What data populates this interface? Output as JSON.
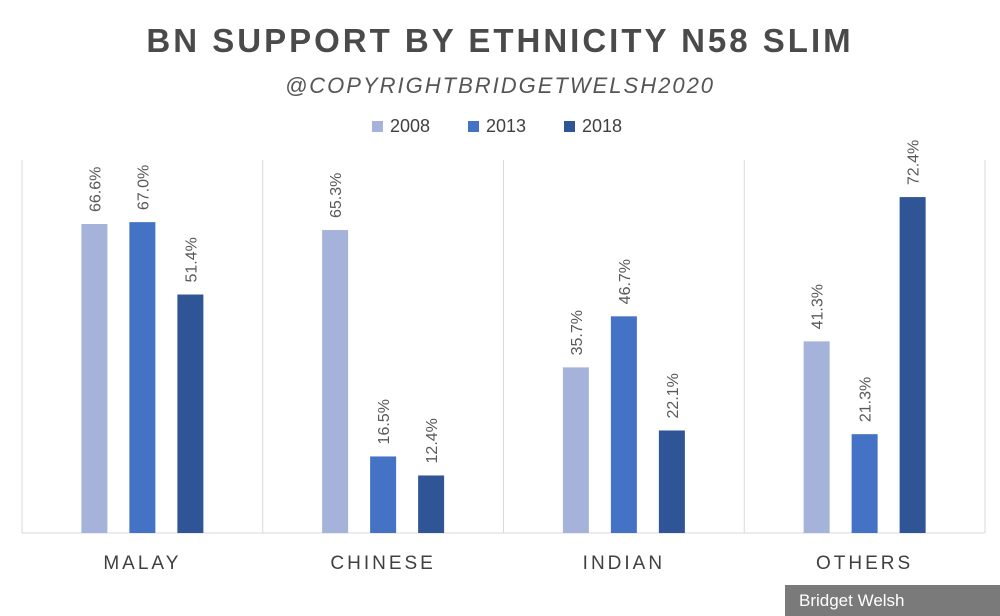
{
  "chart_data": {
    "type": "bar",
    "title": "BN SUPPORT BY ETHNICITY N58 SLIM",
    "subtitle": "@COPYRIGHTBRIDGETWELSH2020",
    "categories": [
      "MALAY",
      "CHINESE",
      "INDIAN",
      "OTHERS"
    ],
    "series": [
      {
        "name": "2008",
        "color": "#a5b3da",
        "values": [
          66.6,
          65.3,
          35.7,
          41.3
        ],
        "labels": [
          "66.6%",
          "65.3%",
          "35.7%",
          "41.3%"
        ]
      },
      {
        "name": "2013",
        "color": "#4472c4",
        "values": [
          67.0,
          16.5,
          46.7,
          21.3
        ],
        "labels": [
          "67.0%",
          "16.5%",
          "46.7%",
          "21.3%"
        ]
      },
      {
        "name": "2018",
        "color": "#2f5597",
        "values": [
          51.4,
          12.4,
          22.1,
          72.4
        ],
        "labels": [
          "51.4%",
          "12.4%",
          "22.1%",
          "72.4%"
        ]
      }
    ],
    "ylim": [
      0,
      80
    ],
    "legend_position": "top-center",
    "grid": false,
    "category_separators": true
  },
  "watermark": "Bridget Welsh"
}
